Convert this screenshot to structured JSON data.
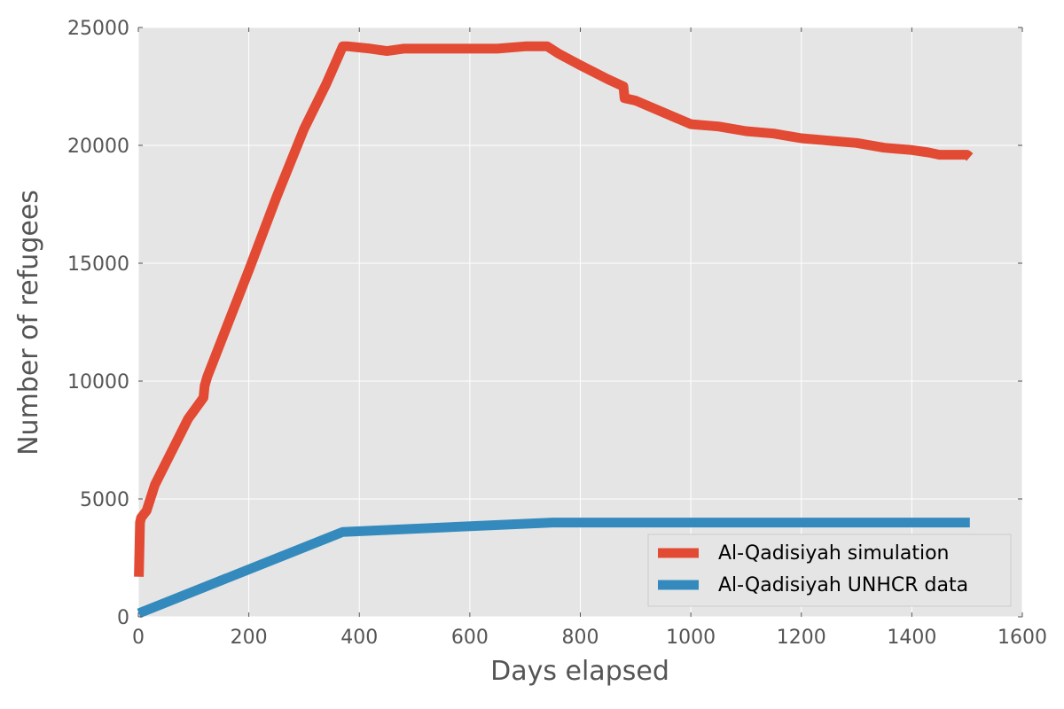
{
  "chart_data": {
    "type": "line",
    "title": "",
    "xlabel": "Days elapsed",
    "ylabel": "Number of refugees",
    "xlim": [
      0,
      1600
    ],
    "ylim": [
      0,
      25000
    ],
    "xticks": [
      0,
      200,
      400,
      600,
      800,
      1000,
      1200,
      1400,
      1600
    ],
    "yticks": [
      0,
      5000,
      10000,
      15000,
      20000,
      25000
    ],
    "xtick_labels": [
      "0",
      "200",
      "400",
      "600",
      "800",
      "1000",
      "1200",
      "1400",
      "1600"
    ],
    "ytick_labels": [
      "0",
      "5000",
      "10000",
      "15000",
      "20000",
      "25000"
    ],
    "grid": true,
    "legend_position": "lower-right",
    "series": [
      {
        "name": "Al-Qadisiyah simulation",
        "color": "#e24a33",
        "x": [
          1,
          3,
          5,
          15,
          30,
          60,
          90,
          118,
          120,
          125,
          160,
          200,
          250,
          300,
          340,
          370,
          380,
          420,
          450,
          480,
          500,
          600,
          650,
          700,
          740,
          760,
          800,
          850,
          878,
          880,
          900,
          950,
          1000,
          1050,
          1100,
          1150,
          1200,
          1250,
          1300,
          1350,
          1400,
          1430,
          1450,
          1500,
          1505
        ],
        "values": [
          1700,
          4000,
          4200,
          4500,
          5600,
          7000,
          8400,
          9300,
          9800,
          10200,
          12300,
          14700,
          17800,
          20700,
          22600,
          24200,
          24200,
          24100,
          24000,
          24100,
          24100,
          24100,
          24100,
          24200,
          24200,
          23900,
          23400,
          22800,
          22500,
          22000,
          21900,
          21400,
          20900,
          20800,
          20600,
          20500,
          20300,
          20200,
          20100,
          19900,
          19800,
          19700,
          19600,
          19600,
          19500
        ]
      },
      {
        "name": "Al-Qadisiyah UNHCR data",
        "color": "#348abd",
        "x": [
          1,
          370,
          750,
          1505
        ],
        "values": [
          150,
          3600,
          4000,
          4000
        ]
      }
    ]
  }
}
